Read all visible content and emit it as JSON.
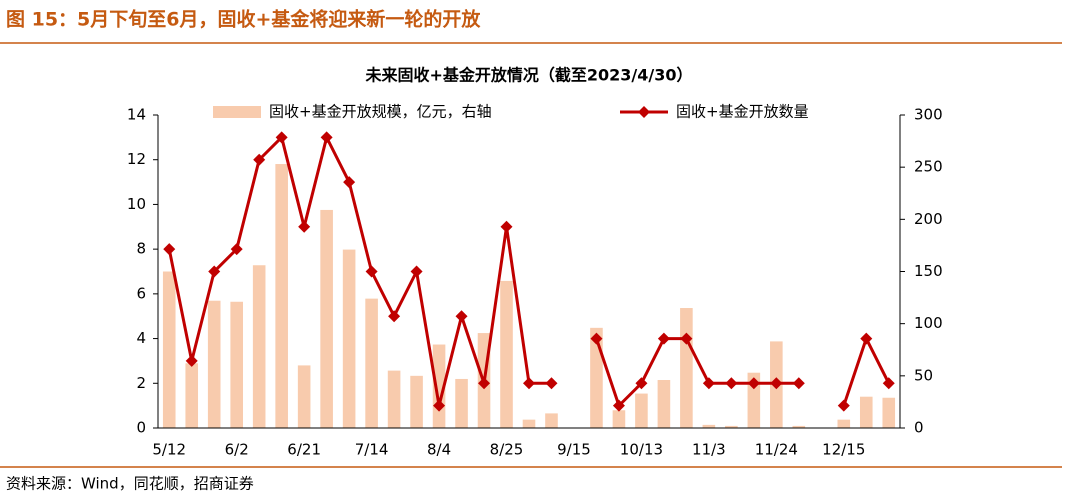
{
  "figure_title": "图 15：5月下旬至6月，固收+基金将迎来新一轮的开放",
  "source": "资料来源：Wind，同花顺，招商证券",
  "chart_data": {
    "type": "combo",
    "title": "未来固收+基金开放情况（截至2023/4/30）",
    "categories": [
      "5/12",
      null,
      null,
      "6/2",
      null,
      null,
      "6/21",
      null,
      null,
      "7/14",
      null,
      null,
      "8/4",
      null,
      null,
      "8/25",
      null,
      null,
      "9/15",
      null,
      null,
      "10/13",
      null,
      null,
      "11/3",
      null,
      null,
      "11/24",
      null,
      null,
      "12/15",
      null,
      null
    ],
    "series": [
      {
        "name": "固收+基金开放规模，亿元，右轴",
        "type": "bar",
        "axis": "y2",
        "color": "#f8cbad",
        "values": [
          150,
          62,
          122,
          121,
          156,
          253,
          60,
          209,
          171,
          124,
          55,
          50,
          80,
          47,
          91,
          141,
          8,
          14,
          0,
          96,
          17,
          33,
          46,
          115,
          3,
          2,
          53,
          83,
          2,
          0,
          8,
          30,
          29
        ]
      },
      {
        "name": "固收+基金开放数量",
        "type": "line",
        "color": "#c00000",
        "values": [
          8,
          3,
          7,
          8,
          12,
          13,
          9,
          13,
          11,
          7,
          5,
          7,
          1,
          5,
          2,
          9,
          2,
          2,
          null,
          4,
          1,
          2,
          4,
          4,
          2,
          2,
          2,
          2,
          2,
          null,
          1,
          4,
          2
        ]
      }
    ],
    "ylim": [
      0,
      14
    ],
    "yticks": [
      0,
      2,
      4,
      6,
      8,
      10,
      12,
      14
    ],
    "y2lim": [
      0,
      300
    ],
    "y2ticks": [
      0,
      50,
      100,
      150,
      200,
      250,
      300
    ],
    "grid": false,
    "legend": "top"
  }
}
